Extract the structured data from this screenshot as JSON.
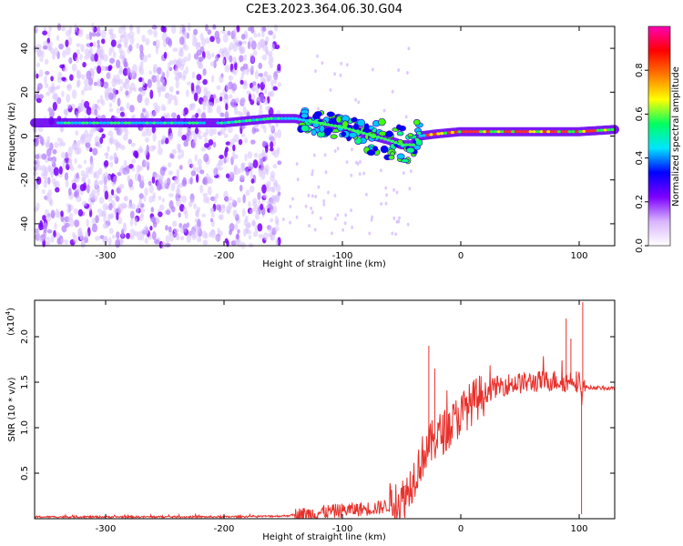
{
  "title": "C2E3.2023.364.06.30.G04",
  "chart_data": [
    {
      "type": "heatmap",
      "xlabel": "Height of straight line (km)",
      "ylabel": "Frequency (Hz)",
      "xlim": [
        -360,
        130
      ],
      "ylim": [
        -50,
        50
      ],
      "x_ticks": [
        -300,
        -200,
        -100,
        0,
        100
      ],
      "y_ticks": [
        -40,
        -20,
        0,
        20,
        40
      ],
      "colorbar": {
        "label": "Normalized spectral amplitude",
        "range": [
          0.0,
          1.0
        ],
        "ticks": [
          "0.0",
          "0.2",
          "0.4",
          "0.6",
          "0.8"
        ],
        "colors": [
          "#ffffff",
          "#d8b4fe",
          "#7c00ff",
          "#0000ff",
          "#00e5ff",
          "#00ff60",
          "#ffff00",
          "#ff7a00",
          "#ff0000",
          "#ff00b4"
        ]
      },
      "ridge": {
        "x": [
          -360,
          -300,
          -250,
          -200,
          -160,
          -140,
          -120,
          -100,
          -80,
          -60,
          -50,
          -40,
          -35,
          -20,
          0,
          20,
          60,
          100,
          130
        ],
        "y": [
          6,
          6,
          6,
          6,
          8,
          8,
          6,
          4,
          1,
          -2,
          -4,
          -4,
          0,
          1,
          2,
          2,
          2,
          2,
          3
        ]
      }
    },
    {
      "type": "line",
      "xlabel": "Height of straight line (km)",
      "ylabel": "SNR (10 * v/v)",
      "exponent_label": "(x10",
      "exponent_power": "4",
      "exponent_close": ")",
      "xlim": [
        -360,
        130
      ],
      "ylim": [
        0.0,
        2.4
      ],
      "x_ticks": [
        -300,
        -200,
        -100,
        0,
        100
      ],
      "y_ticks": [
        "0.5",
        "1.0",
        "1.5",
        "2.0"
      ],
      "color": "#e8312c",
      "x": [
        -360,
        -300,
        -200,
        -150,
        -130,
        -110,
        -90,
        -70,
        -60,
        -50,
        -45,
        -40,
        -35,
        -30,
        -20,
        -10,
        0,
        10,
        20,
        30,
        40,
        60,
        80,
        90,
        95,
        100,
        102,
        104,
        110,
        130
      ],
      "y": [
        0.02,
        0.02,
        0.02,
        0.03,
        0.05,
        0.08,
        0.1,
        0.12,
        0.15,
        0.2,
        0.3,
        0.45,
        0.6,
        0.75,
        0.9,
        1.0,
        1.15,
        1.28,
        1.38,
        1.45,
        1.48,
        1.5,
        1.52,
        1.5,
        1.55,
        1.48,
        1.35,
        1.45,
        1.44,
        1.43
      ]
    }
  ]
}
